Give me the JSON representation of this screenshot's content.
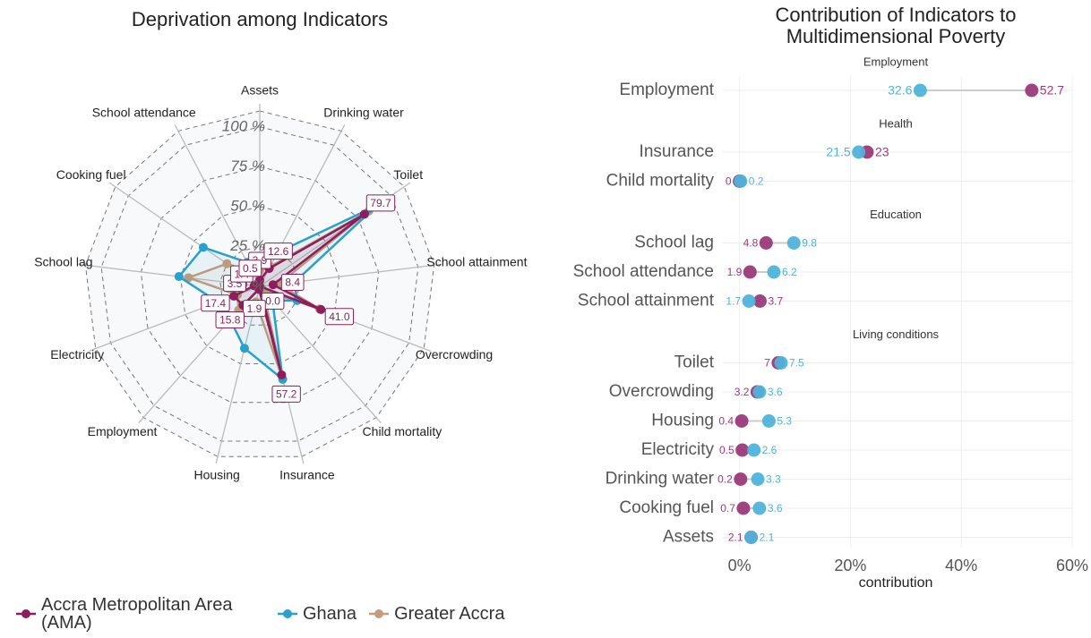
{
  "chart_data": [
    {
      "type": "radar",
      "title": "Deprivation among Indicators",
      "categories": [
        "Assets",
        "Drinking water",
        "Toilet",
        "School attainment",
        "Overcrowding",
        "Child mortality",
        "Insurance",
        "Housing",
        "Employment",
        "Electricity",
        "School lag",
        "Cooking fuel",
        "School attendance"
      ],
      "series": [
        {
          "name": "Accra Metropolitan Area (AMA)",
          "color": "#8b1e5b",
          "values": [
            3.9,
            12.6,
            79.7,
            8.4,
            41.0,
            0.0,
            57.2,
            1.9,
            15.8,
            17.4,
            3.5,
            1.4,
            0.5
          ],
          "value_labels": [
            "3.9",
            "12.6",
            "79.7",
            "8.4",
            "41.0",
            "0.0",
            "57.2",
            "1.9",
            "15.8",
            "17.4",
            "3.5",
            "1.4",
            "0.5"
          ]
        },
        {
          "name": "Ghana",
          "color": "#2aa0cc",
          "values": [
            16,
            24,
            89,
            22,
            25,
            12,
            60,
            40,
            28,
            28,
            51,
            43,
            17
          ]
        },
        {
          "name": "Greater Accra",
          "color": "#c89a7a",
          "values": [
            10,
            14,
            83,
            12,
            40,
            3,
            60,
            10,
            20,
            15,
            45,
            25,
            10
          ]
        }
      ],
      "rlim": [
        0,
        110
      ],
      "rticks": [
        {
          "value": 0,
          "label": "0 %"
        },
        {
          "value": 25,
          "label": "25 %"
        },
        {
          "value": 50,
          "label": "50 %"
        },
        {
          "value": 75,
          "label": "75 %"
        },
        {
          "value": 100,
          "label": "100 %"
        }
      ],
      "grid": true
    },
    {
      "type": "dumbbell",
      "title": "Contribution of Indicators to Multidimensional Poverty",
      "groups": [
        {
          "title": "Employment",
          "categories": [
            "Employment"
          ]
        },
        {
          "title": "Health",
          "categories": [
            "Insurance",
            "Child mortality"
          ]
        },
        {
          "title": "Education",
          "categories": [
            "School lag",
            "School attendance",
            "School attainment"
          ]
        },
        {
          "title": "Living conditions",
          "categories": [
            "Toilet",
            "Overcrowding",
            "Housing",
            "Electricity",
            "Drinking water",
            "Cooking fuel",
            "Assets"
          ]
        }
      ],
      "series": [
        {
          "color": "#9b3a7a",
          "values": [
            52.7,
            23,
            0,
            4.8,
            1.9,
            3.7,
            7,
            3.2,
            0.4,
            0.5,
            0.2,
            0.7,
            2.1
          ]
        },
        {
          "color": "#4fb3da",
          "values": [
            32.6,
            21.5,
            0.2,
            9.8,
            6.2,
            1.7,
            7.5,
            3.6,
            5.3,
            2.6,
            3.3,
            3.6,
            2.1
          ]
        }
      ],
      "xlabel": "contribution",
      "xlim": [
        -3,
        60
      ],
      "xticks": [
        {
          "value": 0,
          "label": "0%"
        },
        {
          "value": 20,
          "label": "20%"
        },
        {
          "value": 40,
          "label": "40%"
        },
        {
          "value": 60,
          "label": "60%"
        }
      ],
      "grid": true
    }
  ]
}
